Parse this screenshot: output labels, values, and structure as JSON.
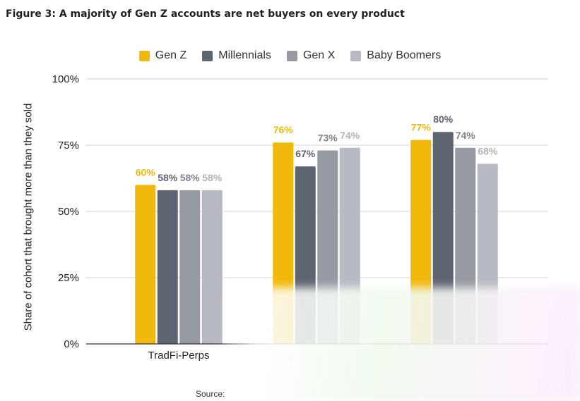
{
  "figure_title": "Figure 3: A majority of Gen Z accounts are net buyers on every product",
  "source_label": "Source:",
  "chart_data": {
    "type": "bar",
    "title": "Figure 3: A majority of Gen Z accounts are net buyers on every product",
    "xlabel": "",
    "ylabel": "Share of cohort that brought more than they sold",
    "ylim": [
      0,
      100
    ],
    "yticks": [
      0,
      25,
      50,
      75,
      100
    ],
    "ytick_labels": [
      "0%",
      "25%",
      "50%",
      "75%",
      "100%"
    ],
    "grid": true,
    "legend_position": "top-center",
    "categories": [
      "TradFi-Perps",
      "",
      ""
    ],
    "series": [
      {
        "name": "Gen Z",
        "color": "#f0b90b",
        "values": [
          60,
          76,
          77
        ],
        "labels": [
          "60%",
          "76%",
          "77%"
        ]
      },
      {
        "name": "Millennials",
        "color": "#5e6470",
        "values": [
          58,
          67,
          80
        ],
        "labels": [
          "58%",
          "67%",
          "80%"
        ]
      },
      {
        "name": "Gen X",
        "color": "#959aa3",
        "values": [
          58,
          73,
          74
        ],
        "labels": [
          "58%",
          "73%",
          "74%"
        ]
      },
      {
        "name": "Baby Boomers",
        "color": "#b7bac2",
        "values": [
          58,
          74,
          68
        ],
        "labels": [
          "58%",
          "74%",
          "68%"
        ]
      }
    ],
    "label_colors": [
      "#f0b90b",
      "#5e6470",
      "#7e838c",
      "#b0b3ba"
    ]
  }
}
